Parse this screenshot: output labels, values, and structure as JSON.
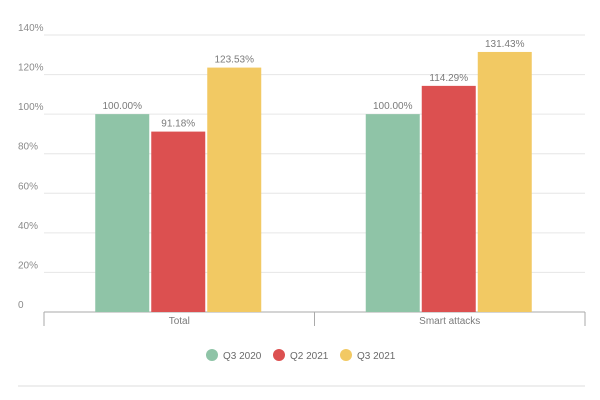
{
  "chart_data": {
    "type": "bar",
    "categories": [
      "Total",
      "Smart attacks"
    ],
    "series": [
      {
        "name": "Q3 2020",
        "values": [
          100.0,
          100.0
        ],
        "labels": [
          "100.00%",
          "100.00%"
        ],
        "color": "#8fc4a7"
      },
      {
        "name": "Q2 2021",
        "values": [
          91.18,
          114.29
        ],
        "labels": [
          "91.18%",
          "114.29%"
        ],
        "color": "#dc5050"
      },
      {
        "name": "Q3 2021",
        "values": [
          123.53,
          131.43
        ],
        "labels": [
          "123.53%",
          "131.43%"
        ],
        "color": "#f2c963"
      }
    ],
    "ylim": [
      0,
      140
    ],
    "yticks": [
      0,
      20,
      40,
      60,
      80,
      100,
      120,
      140
    ],
    "ytick_labels": [
      "0",
      "20%",
      "40%",
      "60%",
      "80%",
      "100%",
      "120%",
      "140%"
    ],
    "title": "",
    "xlabel": "",
    "ylabel": "",
    "grid": true,
    "legend_position": "bottom"
  }
}
